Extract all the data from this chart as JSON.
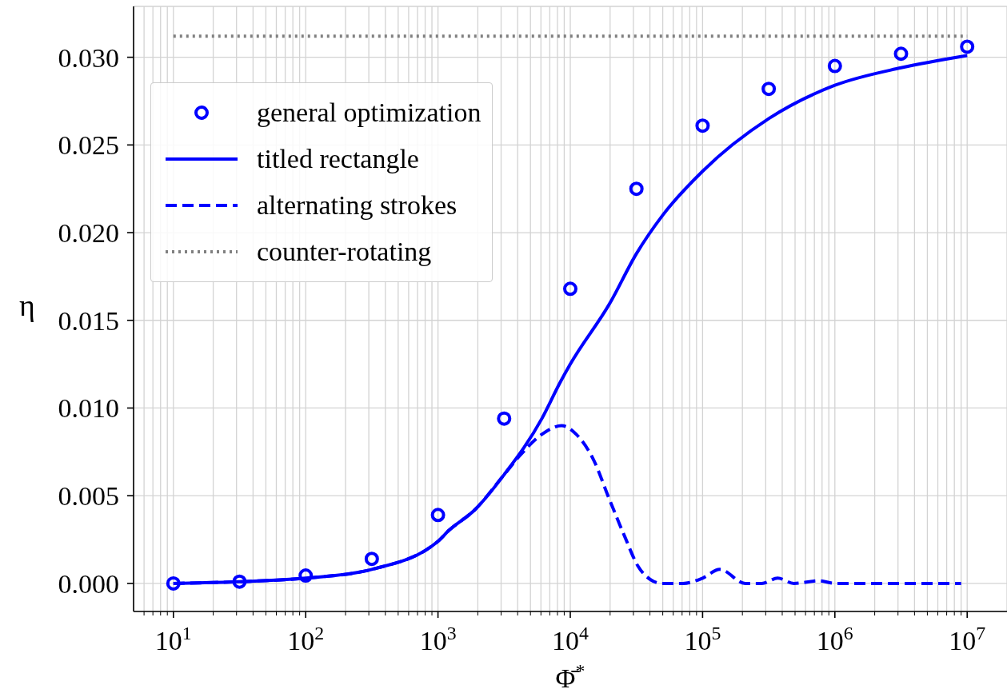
{
  "chart_data": {
    "type": "line",
    "xlabel": "Φ̄$^{*}$",
    "ylabel": "η",
    "log": "x",
    "grid": true,
    "legend": "top left",
    "xlim": [
      5,
      20000000
    ],
    "ylim": [
      -0.0016,
      0.0329
    ],
    "xticks": [
      {
        "value": 6,
        "label": null
      },
      {
        "value": 7,
        "label": null
      },
      {
        "value": 8,
        "label": null
      },
      {
        "value": 9,
        "label": null
      },
      {
        "value": 10,
        "label": "10$^{1}$"
      },
      {
        "value": 20,
        "label": null
      },
      {
        "value": 30,
        "label": null
      },
      {
        "value": 40,
        "label": null
      },
      {
        "value": 50,
        "label": null
      },
      {
        "value": 60,
        "label": null
      },
      {
        "value": 70,
        "label": null
      },
      {
        "value": 80,
        "label": null
      },
      {
        "value": 90,
        "label": null
      },
      {
        "value": 100,
        "label": "10$^{2}$"
      },
      {
        "value": 200,
        "label": null
      },
      {
        "value": 300,
        "label": null
      },
      {
        "value": 400,
        "label": null
      },
      {
        "value": 500,
        "label": null
      },
      {
        "value": 600,
        "label": null
      },
      {
        "value": 700,
        "label": null
      },
      {
        "value": 800,
        "label": null
      },
      {
        "value": 900,
        "label": null
      },
      {
        "value": 1000,
        "label": "10$^{3}$"
      },
      {
        "value": 2000,
        "label": null
      },
      {
        "value": 3000,
        "label": null
      },
      {
        "value": 4000,
        "label": null
      },
      {
        "value": 5000,
        "label": null
      },
      {
        "value": 6000,
        "label": null
      },
      {
        "value": 7000,
        "label": null
      },
      {
        "value": 8000,
        "label": null
      },
      {
        "value": 9000,
        "label": null
      },
      {
        "value": 10000,
        "label": "10$^{4}$"
      },
      {
        "value": 20000,
        "label": null
      },
      {
        "value": 30000,
        "label": null
      },
      {
        "value": 40000,
        "label": null
      },
      {
        "value": 50000,
        "label": null
      },
      {
        "value": 60000,
        "label": null
      },
      {
        "value": 70000,
        "label": null
      },
      {
        "value": 80000,
        "label": null
      },
      {
        "value": 90000,
        "label": null
      },
      {
        "value": 100000,
        "label": "10$^{5}$"
      },
      {
        "value": 200000,
        "label": null
      },
      {
        "value": 300000,
        "label": null
      },
      {
        "value": 400000,
        "label": null
      },
      {
        "value": 500000,
        "label": null
      },
      {
        "value": 600000,
        "label": null
      },
      {
        "value": 700000,
        "label": null
      },
      {
        "value": 800000,
        "label": null
      },
      {
        "value": 900000,
        "label": null
      },
      {
        "value": 1000000,
        "label": "10$^{6}$"
      },
      {
        "value": 2000000,
        "label": null
      },
      {
        "value": 3000000,
        "label": null
      },
      {
        "value": 4000000,
        "label": null
      },
      {
        "value": 5000000,
        "label": null
      },
      {
        "value": 6000000,
        "label": null
      },
      {
        "value": 7000000,
        "label": null
      },
      {
        "value": 8000000,
        "label": null
      },
      {
        "value": 9000000,
        "label": null
      },
      {
        "value": 10000000,
        "label": "10$^{7}$"
      }
    ],
    "yticks": [
      {
        "value": 0,
        "label": "0.000"
      },
      {
        "value": 0.005,
        "label": "0.005"
      },
      {
        "value": 0.01,
        "label": "0.010"
      },
      {
        "value": 0.015,
        "label": "0.015"
      },
      {
        "value": 0.02,
        "label": "0.020"
      },
      {
        "value": 0.025,
        "label": "0.025"
      },
      {
        "value": 0.03,
        "label": "0.030"
      }
    ],
    "series": [
      {
        "name": "general optimization",
        "type": "scatter",
        "marker": "circle",
        "color": "#0000ff",
        "x": [
          10,
          31.6,
          100,
          316,
          1000,
          3162,
          10000,
          31620,
          100000,
          316200,
          1000000,
          3162000,
          10000000
        ],
        "values": [
          0.0,
          0.0001,
          0.00045,
          0.0014,
          0.0039,
          0.0094,
          0.0168,
          0.0225,
          0.0261,
          0.0282,
          0.0295,
          0.0302,
          0.0306
        ]
      },
      {
        "name": "titled rectangle",
        "line_style": "solid",
        "marker": "none",
        "color": "#0000ff",
        "x": [
          10,
          31.6,
          100,
          316,
          1000,
          1200,
          1900,
          3160,
          6100,
          8300,
          10000,
          20000,
          31620,
          50000,
          100000,
          316200,
          1000000,
          3162000,
          10000000
        ],
        "values": [
          0,
          0.0001,
          0.0003,
          0.0008,
          0.0024,
          0.003,
          0.0042,
          0.0062,
          0.0094,
          0.0114,
          0.0125,
          0.016,
          0.0188,
          0.021,
          0.0235,
          0.0265,
          0.0284,
          0.0294,
          0.0301
        ]
      },
      {
        "name": "alternating strokes",
        "line_style": "dashed",
        "marker": "none",
        "color": "#0000ff",
        "x": [
          10,
          31.6,
          100,
          316,
          1000,
          1200,
          1900,
          3160,
          4170,
          6100,
          8600,
          11100,
          15100,
          19500,
          25700,
          32400,
          40700,
          49000,
          71000,
          100000,
          135000,
          210000,
          280000,
          370000,
          490000,
          760000,
          1000000,
          9000000
        ],
        "values": [
          0,
          0.0001,
          0.0003,
          0.0008,
          0.0024,
          0.003,
          0.0042,
          0.0062,
          0.0073,
          0.0085,
          0.009,
          0.0085,
          0.007,
          0.0049,
          0.0027,
          0.001,
          0.0002,
          0,
          0,
          0.0003,
          0.0008,
          0,
          0,
          0.0003,
          0,
          0.00015,
          0,
          0
        ]
      },
      {
        "name": "counter-rotating",
        "line_style": "dotted",
        "marker": "none",
        "color": "#808080",
        "x": [
          10,
          10000000
        ],
        "values": [
          0.0312,
          0.0312
        ]
      }
    ]
  }
}
